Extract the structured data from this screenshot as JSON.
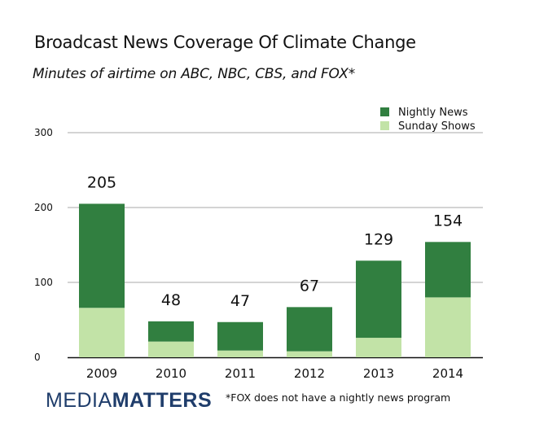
{
  "title": "Broadcast News Coverage Of Climate Change",
  "subtitle": "Minutes of airtime on ABC, NBC, CBS, and FOX*",
  "brand": {
    "part1": "MEDIA",
    "part2": "MATTERS"
  },
  "footnote": "*FOX does not have a nightly news program",
  "colors": {
    "nightly": "#317f40",
    "sunday": "#c2e3a7",
    "grid": "#aaaaaa",
    "axis": "#111111",
    "brand": "#1f3d6b"
  },
  "chart_data": {
    "type": "bar",
    "stacked": true,
    "title": "Broadcast News Coverage Of Climate Change",
    "subtitle": "Minutes of airtime on ABC, NBC, CBS, and FOX*",
    "xlabel": "",
    "ylabel": "",
    "categories": [
      "2009",
      "2010",
      "2011",
      "2012",
      "2013",
      "2014"
    ],
    "series": [
      {
        "name": "Sunday Shows",
        "values": [
          66,
          21,
          9,
          8,
          26,
          80
        ]
      },
      {
        "name": "Nightly News",
        "values": [
          139,
          27,
          38,
          59,
          103,
          74
        ]
      }
    ],
    "totals": [
      205,
      48,
      47,
      67,
      129,
      154
    ],
    "total_labels": [
      "205",
      "48",
      "47",
      "67",
      "129",
      "154"
    ],
    "ylim": [
      0,
      300
    ],
    "yticks": [
      0,
      100,
      200,
      300
    ],
    "ytick_labels": [
      "0",
      "100",
      "200",
      "300"
    ],
    "grid": true,
    "legend": {
      "position": "top-right",
      "entries": [
        "Nightly News",
        "Sunday Shows"
      ]
    }
  }
}
